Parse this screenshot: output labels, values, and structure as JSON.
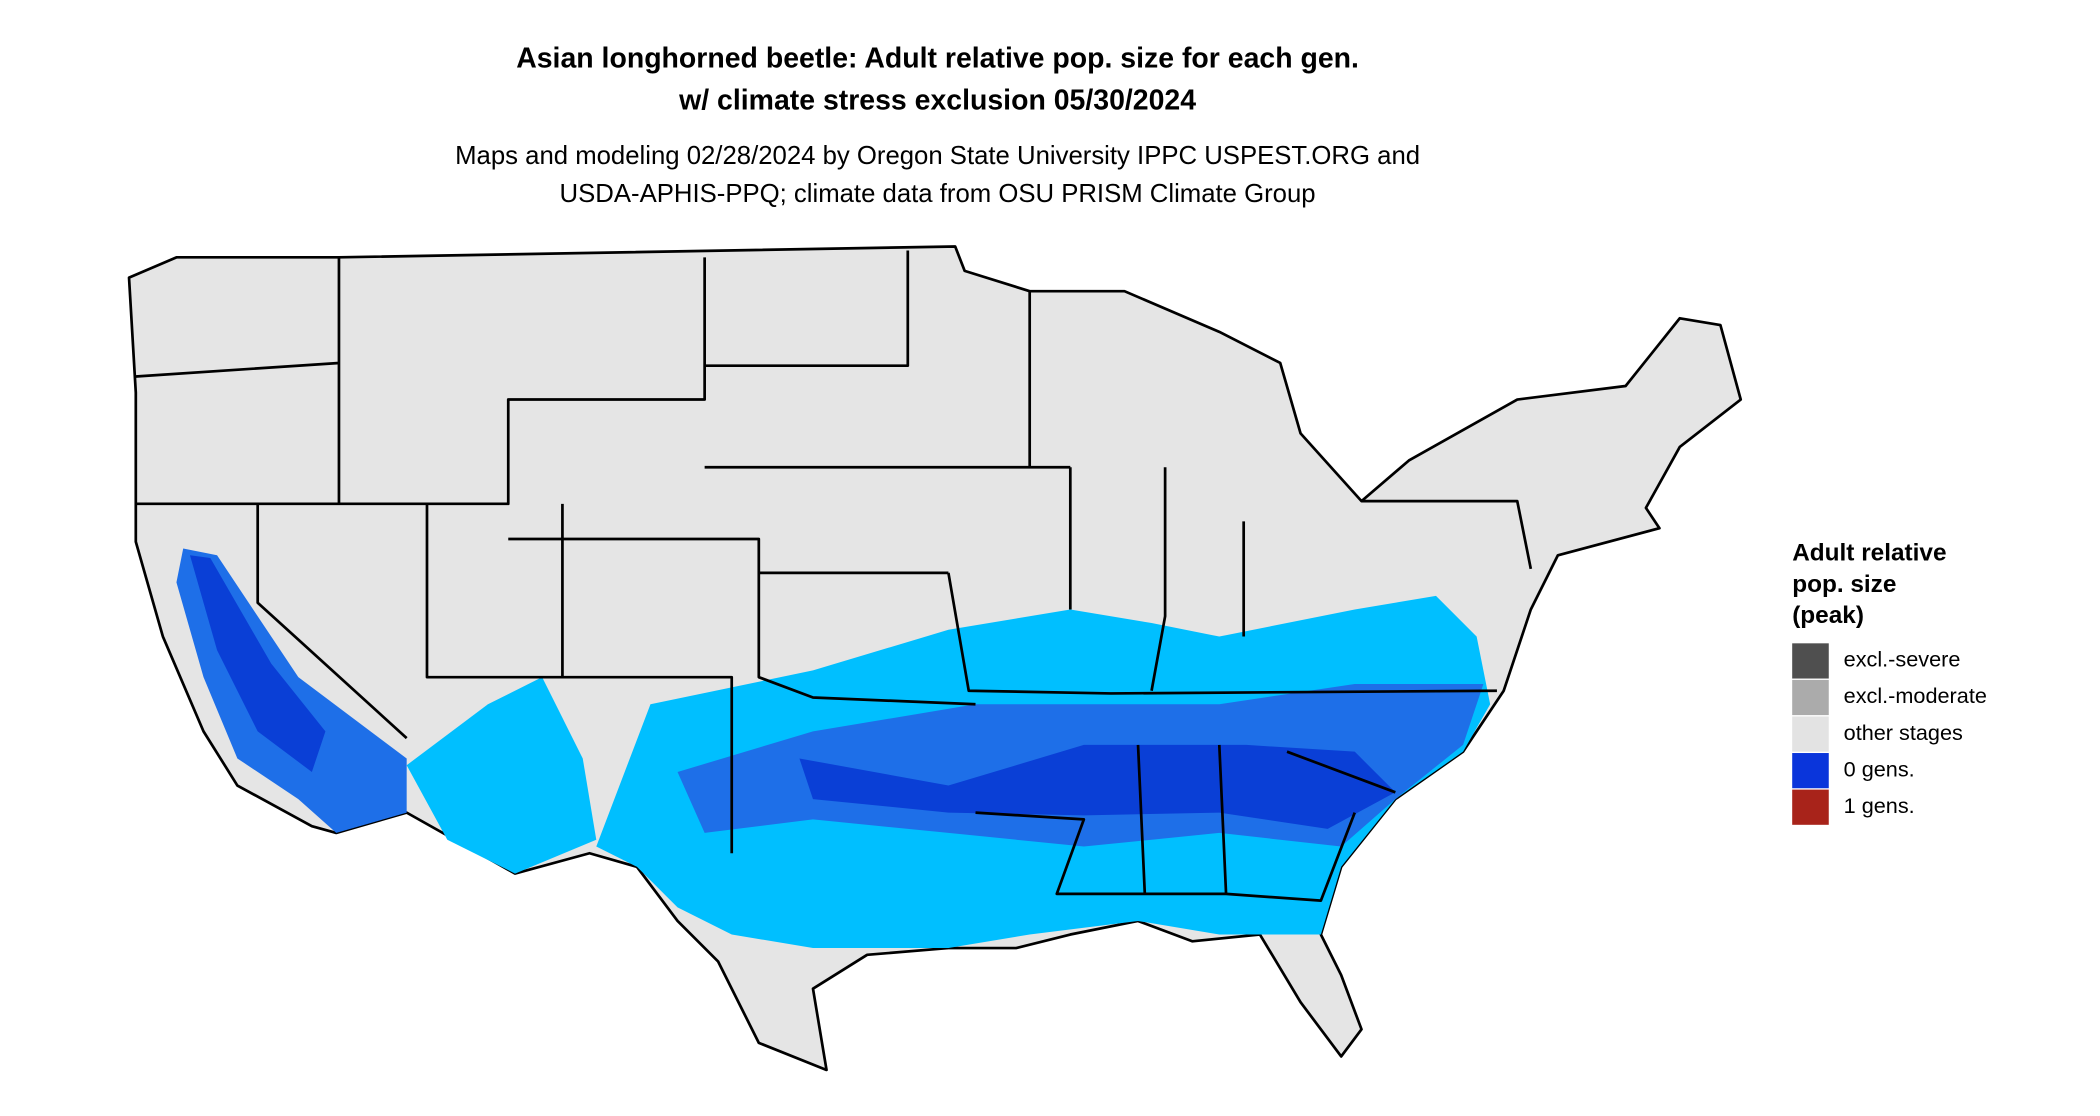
{
  "title": [
    "Asian longhorned beetle: Adult relative pop. size for each gen.",
    "w/ climate stress exclusion 05/30/2024"
  ],
  "subtitle": [
    "Maps and modeling 02/28/2024 by Oregon State University IPPC USPEST.ORG and",
    "USDA-APHIS-PPQ; climate data from OSU PRISM Climate Group"
  ],
  "legend": {
    "title": [
      "Adult relative",
      "pop. size",
      "(peak)"
    ],
    "items": [
      {
        "label": "excl.-severe",
        "color": "#4f4f4f"
      },
      {
        "label": "excl.-moderate",
        "color": "#ababab"
      },
      {
        "label": "other stages",
        "color": "#e3e3e3"
      },
      {
        "label": "0 gens.",
        "color": "#0a35db"
      },
      {
        "label": "1 gens.",
        "color": "#a8231a"
      }
    ]
  }
}
